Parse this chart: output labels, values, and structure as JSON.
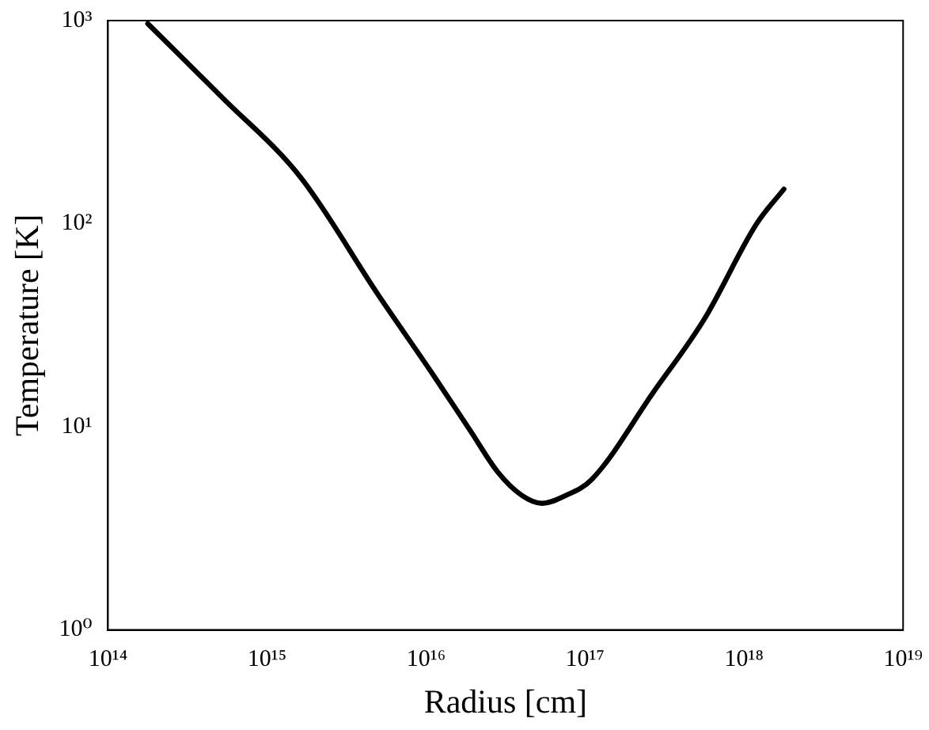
{
  "chart_data": {
    "type": "line",
    "xlabel": "Radius [cm]",
    "ylabel": "Temperature [K]",
    "log": "xy",
    "grid": false,
    "legend": false,
    "marker": "none",
    "line_style": "solid",
    "xlim": [
      100000000000000.0,
      1e+19
    ],
    "ylim": [
      1,
      1000
    ],
    "xticks": [
      {
        "value": 100000000000000.0,
        "label": "10¹⁴"
      },
      {
        "value": 1000000000000000.0,
        "label": "10¹⁵"
      },
      {
        "value": 1e+16,
        "label": "10¹⁶"
      },
      {
        "value": 1e+17,
        "label": "10¹⁷"
      },
      {
        "value": 1e+18,
        "label": "10¹⁸"
      },
      {
        "value": 1e+19,
        "label": "10¹⁹"
      }
    ],
    "yticks": [
      {
        "value": 1,
        "label": "10⁰"
      },
      {
        "value": 10,
        "label": "10¹"
      },
      {
        "value": 100,
        "label": "10²"
      },
      {
        "value": 1000,
        "label": "10³"
      }
    ],
    "series": [
      {
        "color": "#000000",
        "x": [
          178000000000000.0,
          525000000000000.0,
          1620000000000000.0,
          5000000000000000.0,
          1.1e+16,
          1.91e+16,
          2.82e+16,
          4e+16,
          5.37e+16,
          7.6e+16,
          1.1e+17,
          2.69e+17,
          5.62e+17,
          1.2e+18,
          1.78e+18
        ],
        "values": [
          966,
          417,
          170,
          44.7,
          18.2,
          9.5,
          6.0,
          4.6,
          4.2,
          4.6,
          5.5,
          14.8,
          33.9,
          100,
          148
        ]
      }
    ]
  }
}
